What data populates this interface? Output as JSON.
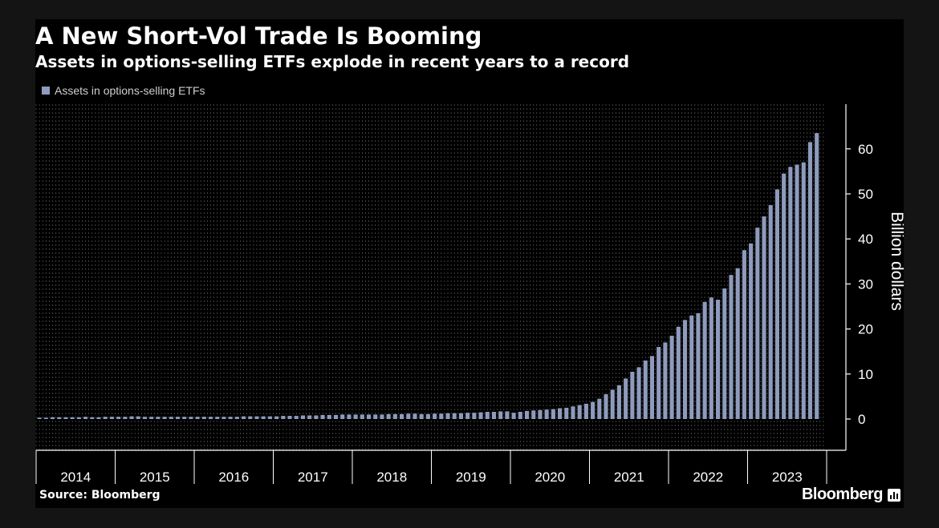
{
  "header": {
    "title": "A New Short-Vol Trade Is Booming",
    "subtitle": "Assets in options-selling ETFs explode in recent years to a record"
  },
  "footer": {
    "source": "Source: Bloomberg",
    "brand": "Bloomberg"
  },
  "colors": {
    "bar": "#8e9bbd",
    "background": "#000000",
    "grid": "#6a6a6a",
    "axis": "#ffffff",
    "text": "#ffffff"
  },
  "chart_data": {
    "type": "bar",
    "title": "A New Short-Vol Trade Is Booming",
    "subtitle": "Assets in options-selling ETFs explode in recent years to a record",
    "xlabel": "",
    "ylabel": "Billion dollars",
    "ylim": [
      -7,
      70
    ],
    "yticks": [
      0,
      10,
      20,
      30,
      40,
      50,
      60
    ],
    "grid": true,
    "legend": "top-left",
    "x_years": [
      "2014",
      "2015",
      "2016",
      "2017",
      "2018",
      "2019",
      "2020",
      "2021",
      "2022",
      "2023"
    ],
    "series": [
      {
        "name": "Assets in options-selling ETFs",
        "start": "2014-01",
        "frequency": "monthly",
        "values": [
          0.3,
          0.3,
          0.4,
          0.4,
          0.4,
          0.4,
          0.4,
          0.5,
          0.4,
          0.4,
          0.5,
          0.5,
          0.5,
          0.5,
          0.6,
          0.6,
          0.5,
          0.5,
          0.5,
          0.5,
          0.5,
          0.5,
          0.5,
          0.5,
          0.5,
          0.5,
          0.5,
          0.5,
          0.5,
          0.5,
          0.5,
          0.6,
          0.6,
          0.6,
          0.6,
          0.6,
          0.6,
          0.7,
          0.7,
          0.7,
          0.8,
          0.8,
          0.8,
          0.9,
          0.9,
          0.9,
          1.0,
          1.0,
          1.0,
          1.0,
          1.0,
          1.0,
          1.0,
          1.1,
          1.1,
          1.1,
          1.2,
          1.2,
          1.1,
          1.1,
          1.2,
          1.2,
          1.3,
          1.3,
          1.3,
          1.4,
          1.4,
          1.5,
          1.6,
          1.6,
          1.7,
          1.7,
          1.4,
          1.6,
          1.8,
          1.9,
          2.0,
          2.1,
          2.2,
          2.4,
          2.5,
          2.8,
          3.1,
          3.4,
          3.8,
          4.5,
          5.5,
          6.5,
          7.5,
          9.0,
          10.5,
          11.5,
          13.0,
          14.0,
          16.0,
          17.0,
          18.5,
          20.5,
          22.0,
          23.0,
          23.5,
          26.0,
          27.0,
          26.5,
          29.0,
          32.0,
          33.5,
          37.5,
          39.0,
          42.5,
          45.0,
          47.5,
          51.0,
          54.5,
          56.0,
          56.5,
          57.0,
          61.5,
          63.5
        ]
      }
    ]
  }
}
